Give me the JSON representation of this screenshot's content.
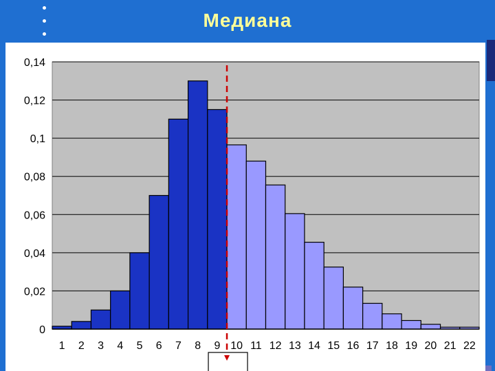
{
  "slide": {
    "title": "Медиана"
  },
  "chart_data": {
    "type": "bar",
    "title": "",
    "xlabel": "",
    "ylabel": "",
    "categories": [
      "1",
      "2",
      "3",
      "4",
      "5",
      "6",
      "7",
      "8",
      "9",
      "10",
      "11",
      "12",
      "13",
      "14",
      "15",
      "16",
      "17",
      "18",
      "19",
      "20",
      "21",
      "22"
    ],
    "values": [
      0.0015,
      0.004,
      0.01,
      0.02,
      0.04,
      0.07,
      0.11,
      0.13,
      0.115,
      0.0965,
      0.088,
      0.0755,
      0.0605,
      0.0455,
      0.0325,
      0.022,
      0.0135,
      0.008,
      0.0045,
      0.0025,
      0.001,
      0.001
    ],
    "ylim": [
      0,
      0.14
    ],
    "yticks": [
      0,
      0.02,
      0.04,
      0.06,
      0.08,
      0.1,
      0.12,
      0.14
    ],
    "ytick_labels": [
      "0",
      "0,02",
      "0,04",
      "0,06",
      "0,08",
      "0,1",
      "0,12",
      "0,14"
    ],
    "grid": true,
    "legend": "none",
    "median_marker_after_category": "9",
    "colors": {
      "below_median": "#1a33c4",
      "above_median": "#9999ff",
      "plot_background": "#c0c0c0",
      "median_line": "#cc0000",
      "slide_background": "#1f6fd1",
      "title_text": "#ffff99"
    }
  }
}
